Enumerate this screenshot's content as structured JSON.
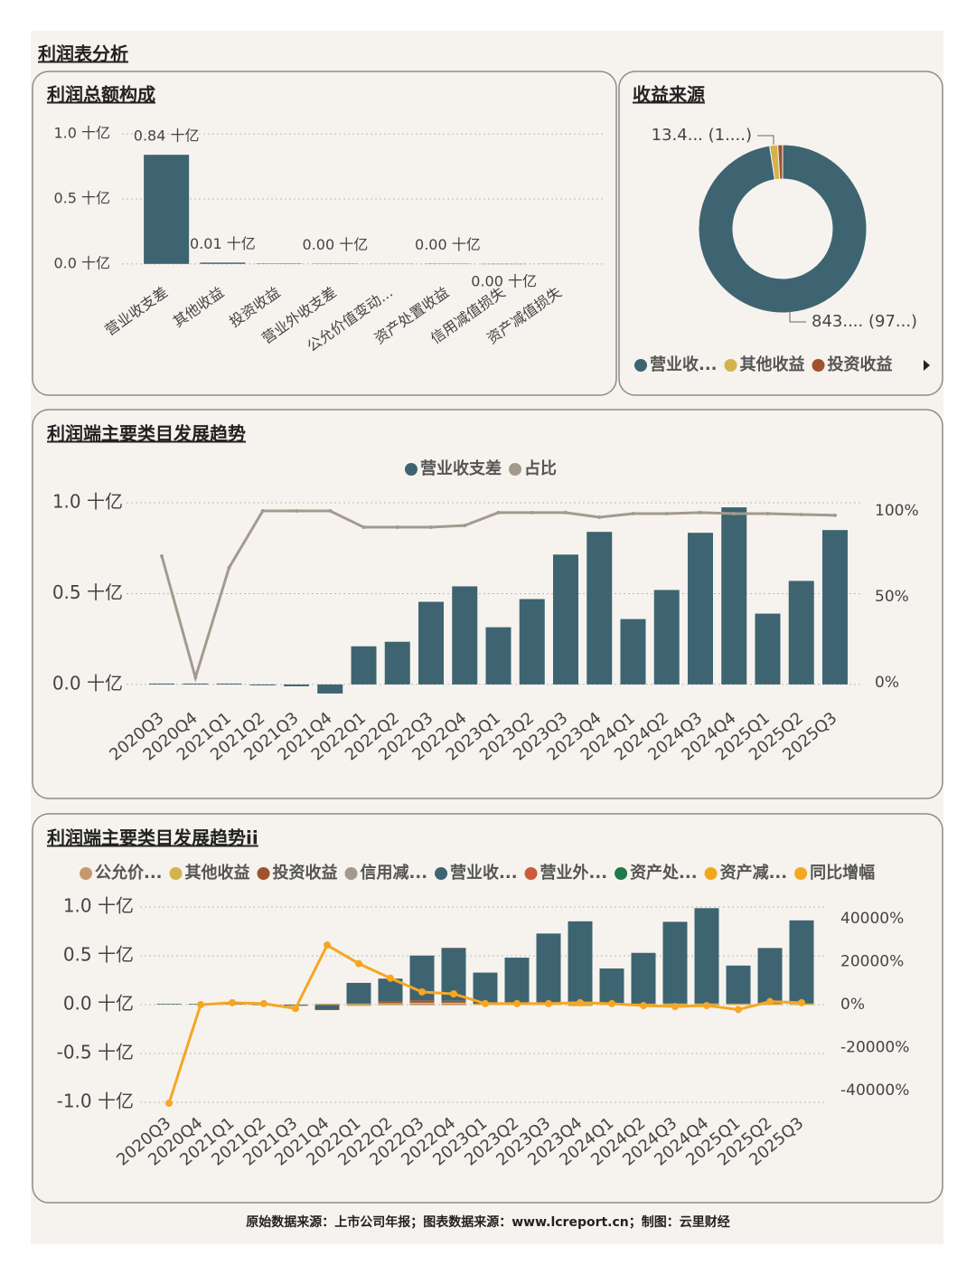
{
  "page_title": "利润表分析",
  "footer": "原始数据来源：上市公司年报；图表数据来源：www.lcreport.cn；制图：云里财经",
  "chart_data": [
    {
      "type": "bar",
      "title": "利润总额构成",
      "color": "#3e6471",
      "categories": [
        "营业收支差",
        "其他收益",
        "投资收益",
        "营业外收支差",
        "公允价值变动...",
        "资产处置收益",
        "信用减值损失",
        "资产减值损失"
      ],
      "values": [
        0.84,
        0.01,
        0.003,
        0.002,
        0.001,
        0.002,
        -0.002,
        -0.001
      ],
      "value_labels": [
        "0.84 十亿",
        "0.01 十亿",
        null,
        "0.00 十亿",
        null,
        "0.00 十亿",
        "0.00 十亿",
        null
      ],
      "ylim": [
        -0.05,
        1.05
      ],
      "yticks": [
        {
          "value": 0,
          "label": "0.0 十亿"
        },
        {
          "value": 0.5,
          "label": "0.5 十亿"
        },
        {
          "value": 1,
          "label": "1.0 十亿"
        }
      ],
      "grid": true
    },
    {
      "type": "donut",
      "title": "收益来源",
      "categories": [
        "营业收...",
        "其他收益",
        "投资收益"
      ],
      "colors": [
        "#3e6471",
        "#d4b24c",
        "#a0522d"
      ],
      "values": [
        843,
        13.4,
        8
      ],
      "value_labels": [
        "843.... (97...)",
        "13.4... (1....)",
        null
      ]
    },
    {
      "type": "combo",
      "title": "利润端主要类目发展趋势",
      "legend": "top",
      "grid": true,
      "categories": [
        "2020Q3",
        "2020Q4",
        "2021Q1",
        "2021Q2",
        "2021Q3",
        "2021Q4",
        "2022Q1",
        "2022Q2",
        "2022Q3",
        "2022Q4",
        "2023Q1",
        "2023Q2",
        "2023Q3",
        "2023Q4",
        "2024Q1",
        "2024Q2",
        "2024Q3",
        "2024Q4",
        "2025Q1",
        "2025Q2",
        "2025Q3"
      ],
      "series": [
        {
          "name": "营业收支差",
          "type": "bar",
          "color": "#3e6471",
          "values": [
            0.005,
            0.005,
            0.005,
            -0.005,
            -0.01,
            -0.05,
            0.21,
            0.235,
            0.455,
            0.54,
            0.315,
            0.47,
            0.715,
            0.84,
            0.36,
            0.52,
            0.835,
            0.975,
            0.39,
            0.57,
            0.85
          ]
        },
        {
          "name": "占比",
          "type": "line",
          "axis": "y2",
          "color": "#a39a8e",
          "values": [
            73.7,
            3,
            67,
            100,
            100,
            100,
            90.5,
            90.5,
            90.5,
            91.5,
            99,
            99,
            99,
            96.3,
            98.4,
            98.4,
            99,
            98.4,
            98.4,
            97.9,
            97.4
          ]
        }
      ],
      "ylim": [
        -0.1,
        1.05
      ],
      "yticks": [
        {
          "value": 0,
          "label": "0.0 十亿"
        },
        {
          "value": 0.5,
          "label": "0.5 十亿"
        },
        {
          "value": 1,
          "label": "1.0 十亿"
        }
      ],
      "y2lim": [
        -11.6,
        110
      ],
      "y2ticks": [
        {
          "value": 0,
          "label": "0%"
        },
        {
          "value": 50,
          "label": "50%"
        },
        {
          "value": 100,
          "label": "100%"
        }
      ]
    },
    {
      "type": "combo",
      "title": "利润端主要类目发展趋势ii",
      "legend": "top",
      "grid": true,
      "categories": [
        "2020Q3",
        "2020Q4",
        "2021Q1",
        "2021Q2",
        "2021Q3",
        "2021Q4",
        "2022Q1",
        "2022Q2",
        "2022Q3",
        "2022Q4",
        "2023Q1",
        "2023Q2",
        "2023Q3",
        "2023Q4",
        "2024Q1",
        "2024Q2",
        "2024Q3",
        "2024Q4",
        "2025Q1",
        "2025Q2",
        "2025Q3"
      ],
      "series": [
        {
          "name": "公允价...",
          "type": "bar",
          "color": "#c49a6c",
          "values": [
            0,
            0,
            0,
            0,
            0,
            0,
            0,
            0.005,
            0.01,
            0.01,
            0,
            0,
            0,
            0,
            0,
            0,
            0,
            0,
            0,
            0,
            0
          ]
        },
        {
          "name": "其他收益",
          "type": "bar",
          "color": "#d4b24c",
          "values": [
            0.002,
            0.001,
            0.001,
            0.001,
            0.002,
            0.005,
            0.008,
            0.01,
            0.01,
            0.01,
            0.008,
            0.008,
            0.01,
            0.01,
            0.008,
            0.008,
            0.01,
            0.01,
            0.008,
            0.008,
            0.01
          ]
        },
        {
          "name": "投资收益",
          "type": "bar",
          "color": "#a0522d",
          "values": [
            0,
            0,
            0,
            0,
            0,
            0.003,
            0.005,
            0.015,
            0.025,
            0.02,
            0.005,
            0.003,
            0.003,
            0.003,
            0.002,
            0.002,
            0.003,
            0.003,
            0.002,
            0.002,
            0.003
          ]
        },
        {
          "name": "信用减...",
          "type": "bar",
          "color": "#a39a8e",
          "values": [
            0,
            0,
            0,
            0,
            -0.002,
            -0.005,
            -0.01,
            -0.005,
            -0.005,
            -0.005,
            -0.003,
            -0.003,
            -0.003,
            -0.005,
            -0.003,
            -0.003,
            -0.003,
            -0.005,
            -0.003,
            -0.003,
            -0.003
          ]
        },
        {
          "name": "营业收...",
          "type": "bar",
          "color": "#3e6471",
          "values": [
            0.005,
            0.005,
            0.005,
            -0.005,
            -0.01,
            -0.05,
            0.21,
            0.235,
            0.455,
            0.54,
            0.315,
            0.47,
            0.715,
            0.84,
            0.36,
            0.52,
            0.835,
            0.975,
            0.39,
            0.57,
            0.85
          ]
        },
        {
          "name": "营业外...",
          "type": "bar",
          "color": "#cc5a3c",
          "values": [
            0,
            0,
            0,
            0,
            0,
            0,
            0,
            0.002,
            0.003,
            0.002,
            0,
            0,
            0,
            0,
            0,
            0,
            0,
            0,
            0,
            0,
            0
          ]
        },
        {
          "name": "资产处...",
          "type": "bar",
          "color": "#1e7a4a",
          "values": [
            0.003,
            0.002,
            0,
            0,
            0,
            0,
            0,
            0,
            0,
            0,
            0,
            0,
            0,
            0,
            0,
            0,
            0,
            0,
            0,
            0,
            0
          ]
        },
        {
          "name": "资产减...",
          "type": "bar",
          "color": "#f2a71b",
          "values": [
            0,
            0,
            0,
            0,
            0,
            -0.002,
            -0.003,
            -0.002,
            -0.002,
            -0.002,
            -0.002,
            -0.002,
            -0.002,
            -0.01,
            -0.002,
            -0.002,
            -0.002,
            -0.003,
            -0.002,
            -0.002,
            -0.002
          ]
        },
        {
          "name": "同比增幅",
          "type": "line",
          "axis": "y2",
          "color": "#f5a623",
          "values": [
            -45900,
            0,
            900,
            450,
            -1800,
            27700,
            19100,
            12300,
            5900,
            5000,
            450,
            450,
            450,
            900,
            450,
            -450,
            -900,
            -450,
            -2300,
            1400,
            900
          ]
        }
      ],
      "ylim": [
        -1.1,
        1.1
      ],
      "yticks": [
        {
          "value": -1,
          "label": "-1.0 十亿"
        },
        {
          "value": -0.5,
          "label": "-0.5 十亿"
        },
        {
          "value": 0,
          "label": "0.0 十亿"
        },
        {
          "value": 0.5,
          "label": "0.5 十亿"
        },
        {
          "value": 1,
          "label": "1.0 十亿"
        }
      ],
      "y2lim": [
        -50000,
        50000
      ],
      "y2ticks": [
        {
          "value": -40000,
          "label": "-40000%"
        },
        {
          "value": -20000,
          "label": "-20000%"
        },
        {
          "value": 0,
          "label": "0%"
        },
        {
          "value": 20000,
          "label": "20000%"
        },
        {
          "value": 40000,
          "label": "40000%"
        }
      ]
    }
  ]
}
